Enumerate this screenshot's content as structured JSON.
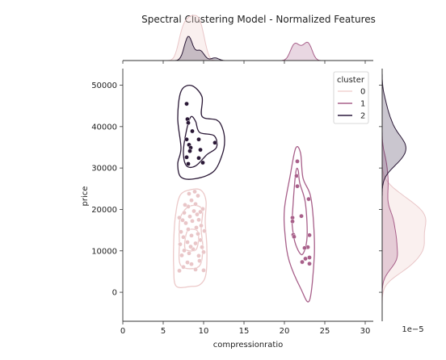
{
  "chart_data": {
    "type": "scatter",
    "title": "Spectral Clustering Model - Normalized Features",
    "xlabel": "compressionratio",
    "ylabel": "price",
    "xlim": [
      0,
      31
    ],
    "ylim": [
      -7000,
      54000
    ],
    "xticks": [
      0,
      5,
      10,
      15,
      20,
      25,
      30
    ],
    "yticks": [
      0,
      10000,
      20000,
      30000,
      40000,
      50000
    ],
    "marginal_exponent_label": "1e−5",
    "legend": {
      "title": "cluster",
      "placement": "top-right",
      "entries": [
        {
          "label": "0",
          "color": "#f0d4d2"
        },
        {
          "label": "1",
          "color": "#a8608a"
        },
        {
          "label": "2",
          "color": "#2d1a3e"
        }
      ]
    },
    "series": [
      {
        "name": "0",
        "color": "#e9c6c8",
        "points": [
          [
            7.0,
            5200
          ],
          [
            7.5,
            6100
          ],
          [
            8.0,
            7200
          ],
          [
            8.5,
            6800
          ],
          [
            9.0,
            5500
          ],
          [
            9.5,
            7600
          ],
          [
            10.0,
            5300
          ],
          [
            7.3,
            8900
          ],
          [
            8.2,
            9400
          ],
          [
            9.4,
            8800
          ],
          [
            7.6,
            10100
          ],
          [
            8.7,
            10400
          ],
          [
            9.8,
            10900
          ],
          [
            7.1,
            11600
          ],
          [
            8.0,
            12100
          ],
          [
            9.0,
            11800
          ],
          [
            9.6,
            12600
          ],
          [
            7.5,
            13300
          ],
          [
            8.5,
            13700
          ],
          [
            9.3,
            14100
          ],
          [
            7.2,
            14600
          ],
          [
            8.1,
            15200
          ],
          [
            9.1,
            15600
          ],
          [
            9.7,
            16100
          ],
          [
            7.8,
            16700
          ],
          [
            8.6,
            17200
          ],
          [
            9.4,
            17500
          ],
          [
            7.0,
            18000
          ],
          [
            8.3,
            18300
          ],
          [
            9.2,
            18800
          ],
          [
            7.6,
            19200
          ],
          [
            8.8,
            19600
          ],
          [
            9.9,
            20100
          ],
          [
            8.1,
            20700
          ],
          [
            9.0,
            21300
          ],
          [
            8.5,
            22200
          ],
          [
            9.3,
            23300
          ],
          [
            8.2,
            23800
          ],
          [
            7.7,
            21100
          ],
          [
            9.6,
            19400
          ],
          [
            10.1,
            14800
          ],
          [
            10.0,
            9700
          ],
          [
            8.9,
            24300
          ],
          [
            7.4,
            17400
          ],
          [
            8.4,
            11000
          ]
        ]
      },
      {
        "name": "1",
        "color": "#a8608a",
        "points": [
          [
            21.6,
            31600
          ],
          [
            21.5,
            28100
          ],
          [
            21.6,
            25600
          ],
          [
            23.0,
            22500
          ],
          [
            22.1,
            18400
          ],
          [
            21.0,
            18000
          ],
          [
            21.0,
            17100
          ],
          [
            21.1,
            13900
          ],
          [
            21.2,
            13400
          ],
          [
            23.1,
            13800
          ],
          [
            22.9,
            10900
          ],
          [
            22.5,
            10700
          ],
          [
            23.1,
            8400
          ],
          [
            22.6,
            8100
          ],
          [
            22.2,
            7300
          ],
          [
            23.1,
            6900
          ]
        ]
      },
      {
        "name": "2",
        "color": "#2a1836",
        "points": [
          [
            7.9,
            45500
          ],
          [
            8.0,
            41800
          ],
          [
            8.1,
            40900
          ],
          [
            8.6,
            38900
          ],
          [
            7.9,
            36900
          ],
          [
            9.4,
            36900
          ],
          [
            11.4,
            36100
          ],
          [
            8.2,
            35600
          ],
          [
            8.4,
            34900
          ],
          [
            9.6,
            34400
          ],
          [
            8.3,
            34100
          ],
          [
            7.9,
            32600
          ],
          [
            9.4,
            32400
          ],
          [
            8.1,
            31000
          ],
          [
            9.9,
            31300
          ]
        ]
      }
    ],
    "contours": [
      {
        "name": "0",
        "color": "#ecc9c9",
        "levels": [
          [
            [
              6.6,
              1500
            ],
            [
              8.4,
              1400
            ],
            [
              9.6,
              1900
            ],
            [
              10.3,
              4500
            ],
            [
              10.4,
              11000
            ],
            [
              10.2,
              17000
            ],
            [
              10.3,
              22000
            ],
            [
              9.7,
              24600
            ],
            [
              8.5,
              24800
            ],
            [
              7.1,
              23400
            ],
            [
              6.5,
              18200
            ],
            [
              6.3,
              12000
            ],
            [
              6.3,
              6000
            ]
          ],
          [
            [
              7.2,
              6400
            ],
            [
              9.4,
              6200
            ],
            [
              9.9,
              10500
            ],
            [
              9.7,
              15200
            ],
            [
              9.8,
              20100
            ],
            [
              8.3,
              20800
            ],
            [
              7.1,
              17900
            ],
            [
              7.0,
              12000
            ]
          ],
          [
            [
              7.8,
              10300
            ],
            [
              9.1,
              10400
            ],
            [
              9.3,
              14600
            ],
            [
              8.1,
              15000
            ],
            [
              7.7,
              12500
            ]
          ]
        ]
      },
      {
        "name": "1",
        "color": "#a8608a",
        "levels": [
          [
            [
              20.0,
              20000
            ],
            [
              20.7,
              28000
            ],
            [
              21.4,
              34800
            ],
            [
              22.0,
              33600
            ],
            [
              22.3,
              27600
            ],
            [
              23.2,
              23500
            ],
            [
              23.6,
              17000
            ],
            [
              23.7,
              8800
            ],
            [
              23.1,
              -2000
            ],
            [
              22.0,
              1000
            ],
            [
              20.6,
              7500
            ],
            [
              20.1,
              13500
            ]
          ],
          [
            [
              21.0,
              19000
            ],
            [
              21.4,
              28800
            ],
            [
              21.7,
              29500
            ],
            [
              21.9,
              26400
            ],
            [
              22.6,
              21500
            ],
            [
              22.8,
              13200
            ],
            [
              22.2,
              9100
            ],
            [
              21.4,
              11500
            ],
            [
              21.0,
              15500
            ]
          ]
        ]
      },
      {
        "name": "2",
        "color": "#2a1836",
        "levels": [
          [
            [
              7.2,
              34800
            ],
            [
              6.8,
              42000
            ],
            [
              7.2,
              48500
            ],
            [
              8.5,
              49900
            ],
            [
              9.8,
              47200
            ],
            [
              9.8,
              42500
            ],
            [
              11.6,
              41600
            ],
            [
              12.3,
              39800
            ],
            [
              12.6,
              36600
            ],
            [
              12.3,
              33200
            ],
            [
              11.2,
              29100
            ],
            [
              8.9,
              27400
            ],
            [
              7.2,
              27800
            ],
            [
              6.8,
              31000
            ]
          ],
          [
            [
              7.5,
              33600
            ],
            [
              7.8,
              38300
            ],
            [
              8.4,
              42300
            ],
            [
              9.0,
              41300
            ],
            [
              9.5,
              38600
            ],
            [
              11.3,
              37800
            ],
            [
              11.6,
              35000
            ],
            [
              10.4,
              33200
            ],
            [
              9.0,
              30500
            ],
            [
              7.9,
              30500
            ]
          ]
        ]
      }
    ]
  }
}
